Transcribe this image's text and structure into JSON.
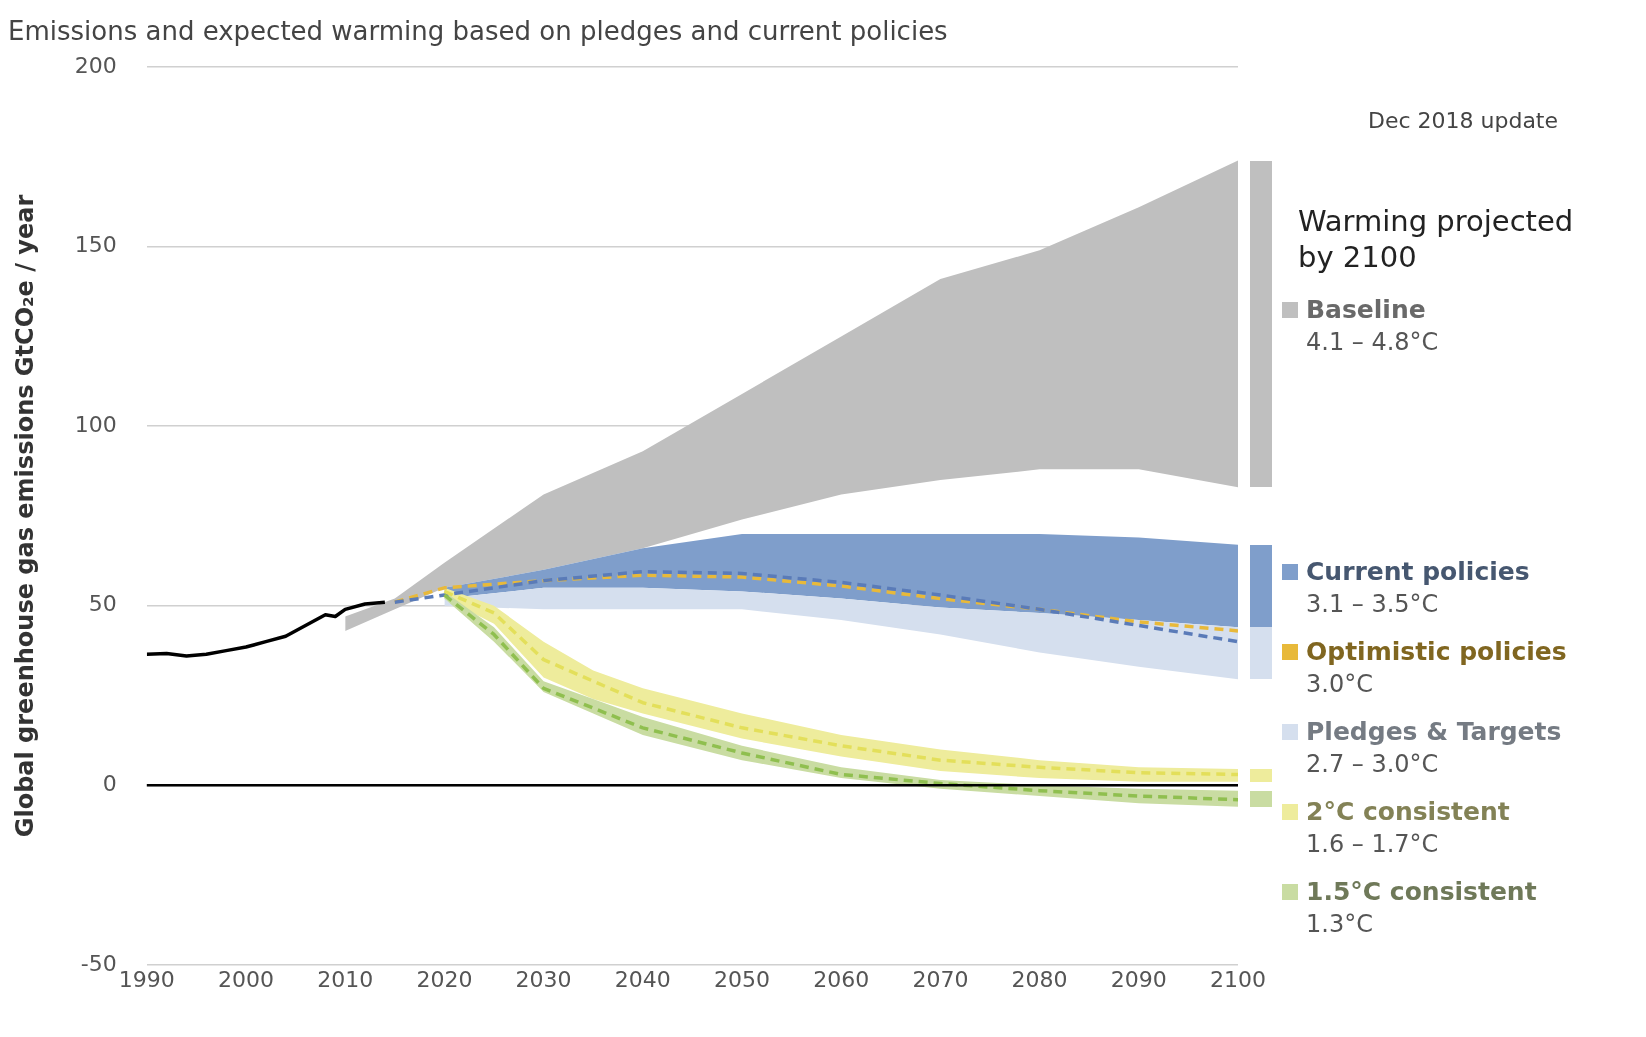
{
  "chart_data": {
    "type": "line",
    "title": "Emissions and expected warming based on pledges and current policies",
    "ylabel": "Global greenhouse gas emissions GtCO₂e / year",
    "xlim": [
      1990,
      2100
    ],
    "xticks": [
      1990,
      2000,
      2010,
      2020,
      2030,
      2040,
      2050,
      2060,
      2070,
      2080,
      2090,
      2100
    ],
    "ylim": [
      -50,
      200
    ],
    "yticks": [
      -50,
      0,
      50,
      100,
      150,
      200
    ],
    "grid": "y",
    "legend": "right",
    "ref_lines": [
      {
        "axis": "y",
        "value": 0,
        "color": "#000000"
      }
    ],
    "annotations": [
      "Dec 2018 update",
      "Warming projected by 2100",
      "4.1 – 4.8°C",
      "3.1 – 3.5°C",
      "3.0°C",
      "2.7 – 3.0°C",
      "1.6 – 1.7°C",
      "1.3°C"
    ],
    "series": [
      {
        "name": "Baseline",
        "type": "area",
        "color": "#bfbfbf",
        "x": [
          2010,
          2015,
          2020,
          2030,
          2040,
          2050,
          2060,
          2070,
          2080,
          2090,
          2100
        ],
        "values": [
          null,
          null,
          null,
          null,
          null,
          null,
          null,
          null,
          null,
          null,
          null
        ],
        "lower": [
          43,
          49,
          55,
          60,
          66,
          74,
          81,
          85,
          88,
          88,
          83
        ],
        "upper": [
          47,
          52,
          62,
          81,
          93,
          109,
          125,
          141,
          149,
          161,
          174
        ]
      },
      {
        "name": "Current policies",
        "type": "area",
        "color": "#7f9ecb",
        "x": [
          2020,
          2030,
          2040,
          2050,
          2060,
          2070,
          2080,
          2090,
          2100
        ],
        "values": [
          null,
          null,
          null,
          null,
          null,
          null,
          null,
          null,
          null
        ],
        "lower": [
          52,
          55,
          55,
          54,
          52,
          49.5,
          48,
          46,
          44
        ],
        "upper": [
          55,
          60,
          66,
          70,
          70,
          70,
          70,
          69,
          67
        ]
      },
      {
        "name": "Optimistic policies",
        "type": "line",
        "line_style": "dashed",
        "color": "#e8b93a",
        "x": [
          2015,
          2020,
          2030,
          2040,
          2050,
          2060,
          2070,
          2080,
          2090,
          2100
        ],
        "values": [
          51,
          55,
          57,
          58.5,
          58,
          55.5,
          52,
          49,
          45.5,
          43
        ]
      },
      {
        "name": "Pledges & Targets",
        "type": "area",
        "color": "#d5dfee",
        "x": [
          2020,
          2030,
          2040,
          2050,
          2060,
          2070,
          2080,
          2090,
          2100
        ],
        "values": [
          null,
          null,
          null,
          null,
          null,
          null,
          null,
          null,
          null
        ],
        "lower": [
          50,
          49,
          49,
          49,
          46,
          42,
          37,
          33,
          29.5
        ],
        "upper": [
          52,
          55,
          55,
          54,
          52,
          49.5,
          48,
          46,
          44
        ]
      },
      {
        "name": "2°C consistent",
        "type": "area",
        "color": "#eeec9c",
        "x": [
          2020,
          2025,
          2030,
          2035,
          2040,
          2050,
          2060,
          2070,
          2080,
          2090,
          2100
        ],
        "values": [
          null,
          null,
          null,
          null,
          null,
          null,
          null,
          null,
          null,
          null,
          null
        ],
        "lower": [
          52,
          45,
          30,
          24,
          20,
          13,
          8,
          4,
          2,
          1,
          1
        ],
        "upper": [
          55,
          50,
          40,
          32,
          27,
          20,
          14,
          10,
          7,
          5,
          4.5
        ]
      },
      {
        "name": "1.5°C consistent",
        "type": "area",
        "color": "#c9dca2",
        "x": [
          2020,
          2025,
          2030,
          2035,
          2040,
          2050,
          2060,
          2070,
          2080,
          2090,
          2100
        ],
        "values": [
          null,
          null,
          null,
          null,
          null,
          null,
          null,
          null,
          null,
          null,
          null
        ],
        "lower": [
          52,
          40,
          26,
          20,
          14,
          7,
          2,
          -1,
          -3,
          -5,
          -6
        ],
        "upper": [
          54,
          44,
          29,
          24,
          19,
          11,
          5,
          1.5,
          0,
          -1,
          -1.5
        ]
      },
      {
        "type": "line",
        "line_style": "solid",
        "color": "#000000",
        "x": [
          1990,
          1992,
          1994,
          1996,
          1998,
          2000,
          2002,
          2004,
          2006,
          2008,
          2009,
          2010,
          2012,
          2014
        ],
        "values": [
          36.5,
          36.7,
          36,
          36.5,
          37.5,
          38.5,
          40,
          41.5,
          44.5,
          47.5,
          47,
          49,
          50.5,
          51
        ]
      },
      {
        "type": "line",
        "line_style": "dashed",
        "color": "#5a7bb8",
        "x": [
          2015,
          2020,
          2030,
          2040,
          2050,
          2060,
          2070,
          2080,
          2090,
          2100
        ],
        "values": [
          51,
          53,
          57,
          59.5,
          59,
          56.5,
          53,
          49,
          44.5,
          40
        ]
      },
      {
        "type": "line",
        "line_style": "dashed",
        "color": "#e3df5a",
        "x": [
          2020,
          2025,
          2030,
          2040,
          2050,
          2060,
          2070,
          2080,
          2090,
          2100
        ],
        "values": [
          54,
          48,
          35,
          23,
          16,
          11,
          7,
          5,
          3.5,
          3
        ]
      },
      {
        "type": "line",
        "line_style": "dashed",
        "color": "#8fbf4f",
        "x": [
          2020,
          2025,
          2030,
          2040,
          2050,
          2060,
          2070,
          2080,
          2090,
          2100
        ],
        "values": [
          53,
          42,
          27,
          16,
          9,
          3,
          0.5,
          -1.5,
          -3,
          -4
        ]
      }
    ]
  }
}
